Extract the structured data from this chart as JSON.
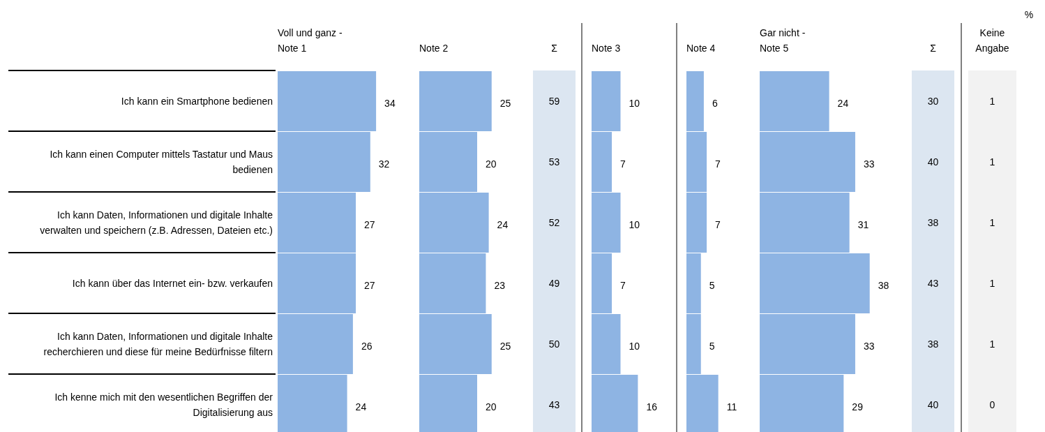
{
  "chart_data": [
    {
      "type": "bar",
      "orientation": "horizontal",
      "title": "Voll und ganz -\nNote 1",
      "categories": [
        "Ich kann ein Smartphone bedienen",
        "Ich kann einen Computer mittels Tastatur und Maus bedienen",
        "Ich kann Daten, Informationen und digitale Inhalte verwalten und speichern (z.B. Adressen, Dateien etc.)",
        "Ich kann über das Internet ein- bzw. verkaufen",
        "Ich kann Daten, Informationen und digitale Inhalte recherchieren und diese für meine Bedürfnisse filtern",
        "Ich kenne mich mit den wesentlichen Begriffen der Digitalisierung aus"
      ],
      "values": [
        34,
        32,
        27,
        27,
        26,
        24
      ],
      "color": "#8eb4e3",
      "data_labels": true
    },
    {
      "type": "bar",
      "orientation": "horizontal",
      "title": "Note 2",
      "categories": [
        null,
        null,
        null,
        null,
        null,
        null
      ],
      "values": [
        25,
        20,
        24,
        23,
        25,
        20
      ],
      "color": "#8eb4e3",
      "data_labels": true
    },
    {
      "type": "other",
      "title": "Σ",
      "categories": [
        null,
        null,
        null,
        null,
        null,
        null
      ],
      "values": [
        59,
        53,
        52,
        49,
        50,
        43
      ],
      "color": "#dce6f1",
      "data_labels": true
    },
    {
      "type": "bar",
      "orientation": "horizontal",
      "title": "Note 3",
      "categories": [
        null,
        null,
        null,
        null,
        null,
        null
      ],
      "values": [
        10,
        7,
        10,
        7,
        10,
        16
      ],
      "color": "#8eb4e3",
      "data_labels": true
    },
    {
      "type": "bar",
      "orientation": "horizontal",
      "title": "Note 4",
      "categories": [
        null,
        null,
        null,
        null,
        null,
        null
      ],
      "values": [
        6,
        7,
        7,
        5,
        5,
        11
      ],
      "color": "#8eb4e3",
      "data_labels": true
    },
    {
      "type": "bar",
      "orientation": "horizontal",
      "title": "Gar nicht -\nNote 5",
      "categories": [
        null,
        null,
        null,
        null,
        null,
        null
      ],
      "values": [
        24,
        33,
        31,
        38,
        33,
        29
      ],
      "color": "#8eb4e3",
      "data_labels": true
    },
    {
      "type": "other",
      "title": "Σ",
      "categories": [
        null,
        null,
        null,
        null,
        null,
        null
      ],
      "values": [
        30,
        40,
        38,
        43,
        38,
        40
      ],
      "color": "#dce6f1",
      "data_labels": true
    },
    {
      "type": "other",
      "title": "Keine\nAngabe",
      "categories": [
        null,
        null,
        null,
        null,
        null,
        null
      ],
      "values": [
        1,
        1,
        1,
        1,
        1,
        0
      ],
      "color": "#f2f2f2",
      "data_labels": true,
      "annotations": [
        "%"
      ]
    }
  ]
}
